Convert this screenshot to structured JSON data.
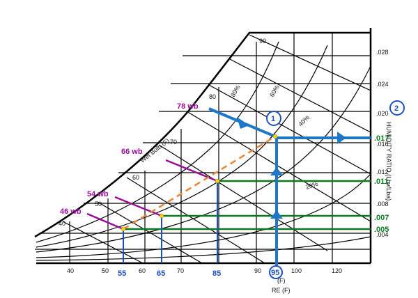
{
  "diagram": {
    "axis_titles": {
      "humidity_ratio": "HUMIDITY RATIO (Lbv/Lba)",
      "wet_bulb": "Wet Bulb (F)",
      "dry_bulb_fragment": "(F)",
      "dry_bulb_fragment2": "RE (F)"
    },
    "x_ticks": [
      "40",
      "50",
      "60",
      "70",
      "90",
      "100",
      "120"
    ],
    "y_ticks": [
      ".028",
      ".024",
      ".020",
      ".016",
      ".012",
      ".008",
      ".004"
    ],
    "wet_bulb_ticks": [
      "40",
      "50",
      "60",
      "70",
      "80",
      "90"
    ],
    "rh_labels": [
      "80%",
      "60%",
      "40%",
      "20%"
    ],
    "wet_bulb_markers": [
      "78 wb",
      "66 wb",
      "54 wb",
      "46 wb"
    ],
    "dry_bulb_markers": [
      "55",
      "65",
      "85",
      "95"
    ],
    "humidity_markers": [
      ".017",
      ".011",
      ".007",
      ".005"
    ],
    "callouts": [
      "1",
      "2"
    ],
    "colors": {
      "blue": "#1f77c8",
      "navy": "#1f4fbf",
      "green": "#0a7a1e",
      "purple": "#9a0f9a",
      "orange": "#e8873a",
      "yellow": "#f2d21c"
    }
  }
}
